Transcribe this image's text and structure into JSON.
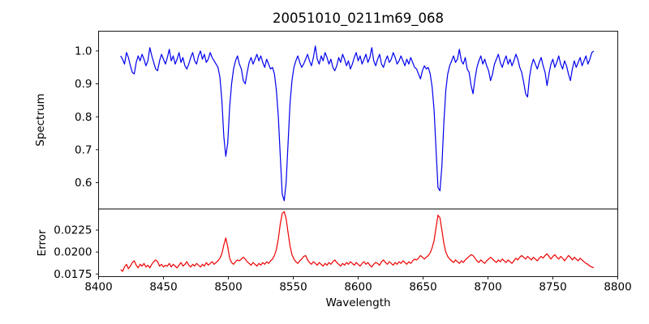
{
  "chart_data": {
    "type": "line",
    "title": "20051010_0211m69_068",
    "xlabel": "Wavelength",
    "xlim": [
      8400,
      8800
    ],
    "xticks": [
      8400,
      8450,
      8500,
      8550,
      8600,
      8650,
      8700,
      8750,
      8800
    ],
    "grid": false,
    "legend": "none",
    "absorption_minima_wavelengths": [
      8498,
      8542,
      8662
    ],
    "panels": [
      {
        "name": "spectrum",
        "ylabel": "Spectrum",
        "ylim": [
          0.52,
          1.06
        ],
        "yticks": [
          1.0,
          0.9,
          0.8,
          0.7,
          0.6
        ],
        "ytick_labels": [
          "1.0",
          "0.9",
          "0.8",
          "0.7",
          "0.6"
        ],
        "line_color": "#0000ee",
        "x_start": 8417,
        "x_step": 1.5,
        "values": [
          0.985,
          0.975,
          0.96,
          0.995,
          0.98,
          0.955,
          0.935,
          0.93,
          0.965,
          0.985,
          0.97,
          0.99,
          0.975,
          0.955,
          0.97,
          1.01,
          0.985,
          0.965,
          0.945,
          0.94,
          0.97,
          0.99,
          0.975,
          0.96,
          0.98,
          1.005,
          0.97,
          0.985,
          0.96,
          0.975,
          0.995,
          0.965,
          0.98,
          0.955,
          0.945,
          0.96,
          0.98,
          0.995,
          0.97,
          0.96,
          0.985,
          1.0,
          0.975,
          0.99,
          0.965,
          0.975,
          0.995,
          0.98,
          0.97,
          0.96,
          0.95,
          0.92,
          0.85,
          0.74,
          0.68,
          0.72,
          0.83,
          0.9,
          0.945,
          0.97,
          0.985,
          0.96,
          0.945,
          0.91,
          0.9,
          0.935,
          0.965,
          0.98,
          0.96,
          0.975,
          0.99,
          0.97,
          0.985,
          0.965,
          0.95,
          0.975,
          0.96,
          0.945,
          0.95,
          0.93,
          0.88,
          0.8,
          0.68,
          0.565,
          0.545,
          0.6,
          0.72,
          0.84,
          0.91,
          0.95,
          0.97,
          0.985,
          0.965,
          0.95,
          0.96,
          0.975,
          0.99,
          0.97,
          0.955,
          0.98,
          1.015,
          0.975,
          0.96,
          0.985,
          0.97,
          0.995,
          0.98,
          0.96,
          0.975,
          0.95,
          0.94,
          0.955,
          0.98,
          0.965,
          0.99,
          0.975,
          0.955,
          0.97,
          0.945,
          0.96,
          0.98,
          0.995,
          0.97,
          0.985,
          0.96,
          0.975,
          0.99,
          0.965,
          0.98,
          1.01,
          0.97,
          0.955,
          0.975,
          0.99,
          0.96,
          0.95,
          0.97,
          0.985,
          0.965,
          0.975,
          0.995,
          0.98,
          0.96,
          0.97,
          0.985,
          0.97,
          0.955,
          0.975,
          0.96,
          0.98,
          0.965,
          0.95,
          0.945,
          0.93,
          0.915,
          0.94,
          0.955,
          0.945,
          0.95,
          0.93,
          0.89,
          0.82,
          0.7,
          0.585,
          0.575,
          0.65,
          0.78,
          0.88,
          0.93,
          0.955,
          0.97,
          0.985,
          0.965,
          0.975,
          1.005,
          0.97,
          0.96,
          0.98,
          0.945,
          0.935,
          0.895,
          0.87,
          0.915,
          0.95,
          0.97,
          0.985,
          0.96,
          0.975,
          0.955,
          0.94,
          0.91,
          0.93,
          0.96,
          0.975,
          0.99,
          0.965,
          0.95,
          0.97,
          0.985,
          0.96,
          0.975,
          0.955,
          0.97,
          0.99,
          0.975,
          0.95,
          0.935,
          0.905,
          0.87,
          0.86,
          0.92,
          0.955,
          0.975,
          0.96,
          0.945,
          0.965,
          0.98,
          0.955,
          0.935,
          0.895,
          0.93,
          0.96,
          0.975,
          0.95,
          0.965,
          0.985,
          0.96,
          0.945,
          0.97,
          0.955,
          0.93,
          0.91,
          0.945,
          0.97,
          0.95,
          0.965,
          0.98,
          0.955,
          0.97,
          0.985,
          0.96,
          0.975,
          0.995,
          1.0
        ]
      },
      {
        "name": "error",
        "ylabel": "Error",
        "ylim": [
          0.0172,
          0.0249
        ],
        "yticks": [
          0.0225,
          0.02,
          0.0175
        ],
        "ytick_labels": [
          "0.0225",
          "0.0200",
          "0.0175"
        ],
        "line_color": "#ee0000",
        "x_start": 8417,
        "x_step": 1.5,
        "values": [
          0.018,
          0.0178,
          0.0183,
          0.0186,
          0.0181,
          0.0184,
          0.0188,
          0.019,
          0.0185,
          0.0182,
          0.0186,
          0.0184,
          0.0187,
          0.0183,
          0.0185,
          0.0182,
          0.0186,
          0.0189,
          0.0191,
          0.0189,
          0.0184,
          0.0186,
          0.0183,
          0.0185,
          0.0184,
          0.0187,
          0.0183,
          0.0186,
          0.0184,
          0.0182,
          0.0185,
          0.0188,
          0.0184,
          0.0186,
          0.0189,
          0.0185,
          0.0183,
          0.0186,
          0.0184,
          0.0187,
          0.0185,
          0.0183,
          0.0186,
          0.0184,
          0.0188,
          0.0185,
          0.0187,
          0.0189,
          0.0186,
          0.0188,
          0.019,
          0.0193,
          0.0198,
          0.0208,
          0.0216,
          0.0206,
          0.0193,
          0.0188,
          0.0186,
          0.0189,
          0.0191,
          0.019,
          0.0192,
          0.0194,
          0.0192,
          0.0189,
          0.0187,
          0.0185,
          0.0188,
          0.0186,
          0.0184,
          0.0187,
          0.0185,
          0.0188,
          0.0186,
          0.0189,
          0.0187,
          0.019,
          0.0192,
          0.0196,
          0.0203,
          0.0215,
          0.0232,
          0.0244,
          0.0246,
          0.0238,
          0.0222,
          0.0207,
          0.0197,
          0.0192,
          0.0189,
          0.0187,
          0.019,
          0.0192,
          0.0195,
          0.0196,
          0.0191,
          0.0188,
          0.0186,
          0.0189,
          0.0187,
          0.0185,
          0.0188,
          0.0186,
          0.0184,
          0.0187,
          0.0185,
          0.0188,
          0.0186,
          0.0189,
          0.0191,
          0.0188,
          0.0186,
          0.0184,
          0.0187,
          0.0185,
          0.0188,
          0.0186,
          0.0189,
          0.0187,
          0.0185,
          0.0188,
          0.0186,
          0.0184,
          0.0187,
          0.0189,
          0.0186,
          0.0188,
          0.0185,
          0.0183,
          0.0186,
          0.0188,
          0.0187,
          0.0185,
          0.0189,
          0.0191,
          0.0188,
          0.0186,
          0.0189,
          0.0187,
          0.0185,
          0.0188,
          0.0186,
          0.0189,
          0.0187,
          0.019,
          0.0188,
          0.0186,
          0.0189,
          0.0187,
          0.019,
          0.0192,
          0.0191,
          0.0193,
          0.0196,
          0.0194,
          0.0192,
          0.0194,
          0.0196,
          0.0199,
          0.0205,
          0.0213,
          0.0228,
          0.0242,
          0.0239,
          0.0225,
          0.021,
          0.02,
          0.0195,
          0.0192,
          0.019,
          0.0188,
          0.0191,
          0.0189,
          0.0187,
          0.019,
          0.0188,
          0.0191,
          0.0193,
          0.0195,
          0.0197,
          0.0196,
          0.0193,
          0.019,
          0.0188,
          0.0191,
          0.0189,
          0.0187,
          0.019,
          0.0192,
          0.0194,
          0.0192,
          0.019,
          0.0188,
          0.0191,
          0.0189,
          0.0192,
          0.019,
          0.0188,
          0.0191,
          0.0189,
          0.0187,
          0.019,
          0.0193,
          0.0191,
          0.0194,
          0.0196,
          0.0194,
          0.0192,
          0.0195,
          0.0193,
          0.0191,
          0.0194,
          0.0192,
          0.019,
          0.0193,
          0.0195,
          0.0193,
          0.0196,
          0.0198,
          0.0195,
          0.0192,
          0.0195,
          0.0197,
          0.0194,
          0.0192,
          0.0195,
          0.0193,
          0.019,
          0.0193,
          0.0196,
          0.0194,
          0.0191,
          0.0194,
          0.0192,
          0.019,
          0.0193,
          0.0191,
          0.0189,
          0.0187,
          0.0186,
          0.0184,
          0.0183,
          0.0182
        ]
      }
    ]
  }
}
